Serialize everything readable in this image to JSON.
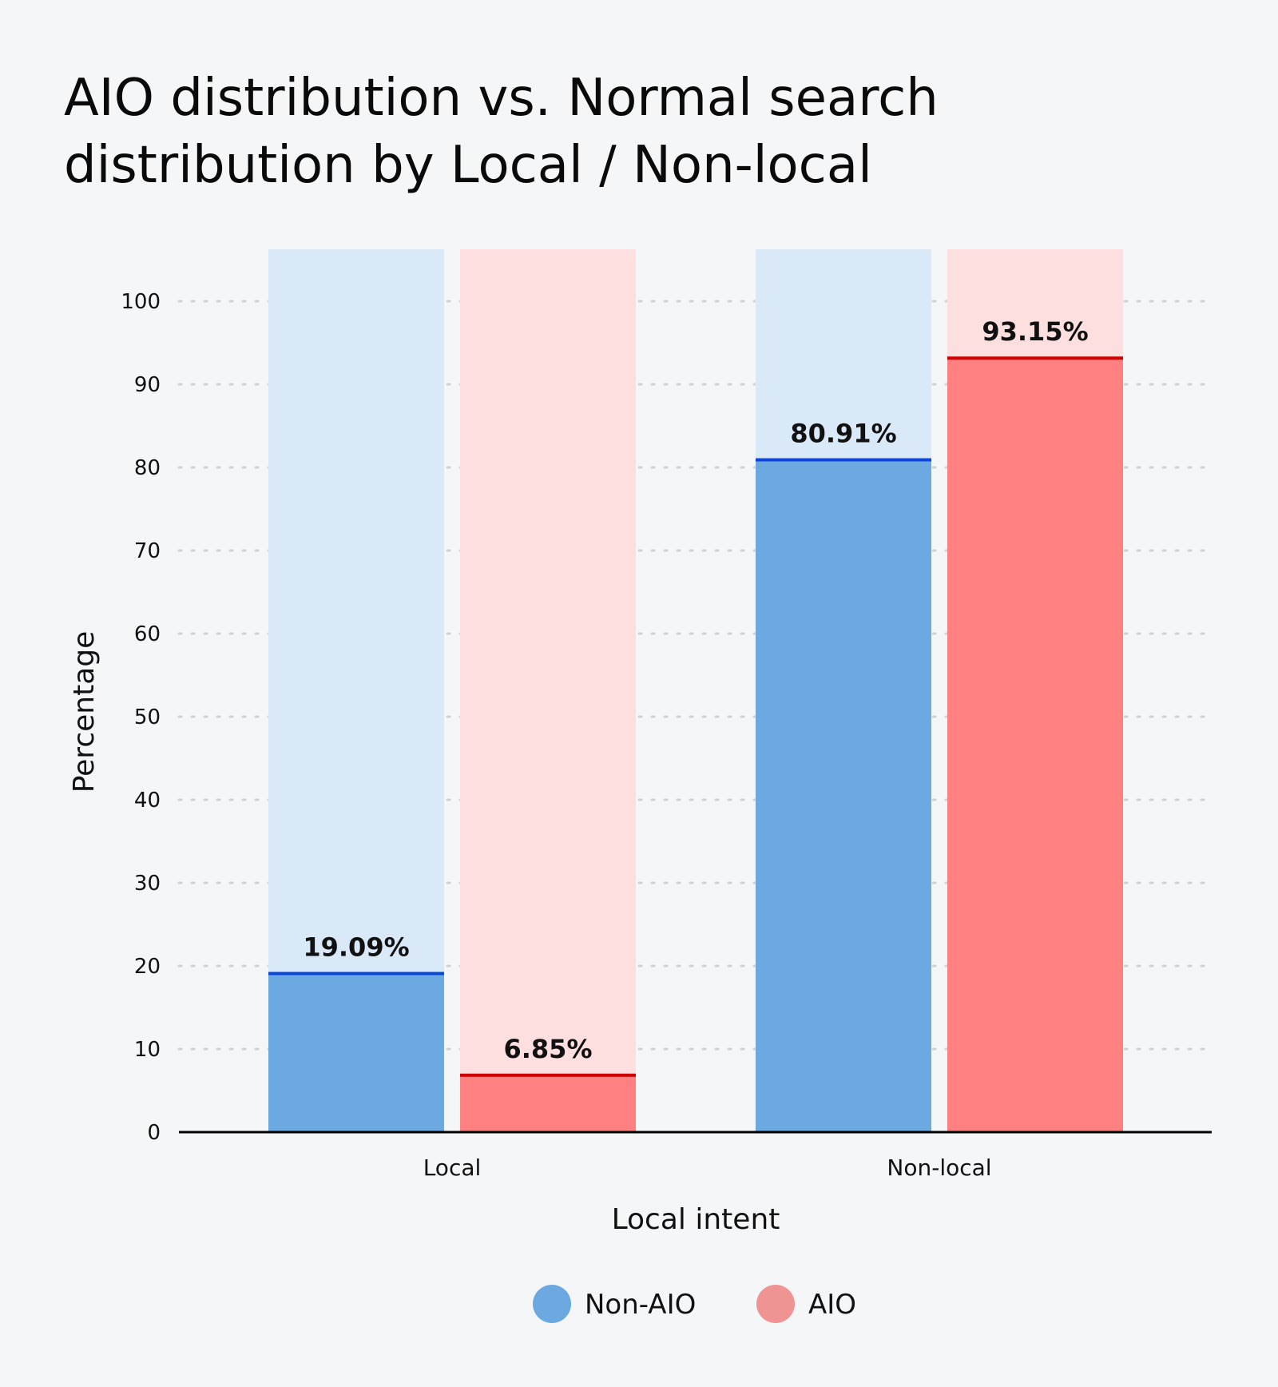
{
  "chart_data": {
    "type": "bar",
    "title_lines": [
      "AIO distribution vs. Normal search",
      "distribution by Local / Non-local"
    ],
    "xlabel": "Local intent",
    "ylabel": "Percentage",
    "categories": [
      "Local",
      "Non-local"
    ],
    "ylim": [
      0,
      100
    ],
    "yticks": [
      0,
      10,
      20,
      30,
      40,
      50,
      60,
      70,
      80,
      90,
      100
    ],
    "grid": "horizontal dotted",
    "legend_placement": "bottom",
    "series": [
      {
        "name": "Non-AIO",
        "values": [
          19.09,
          80.91
        ],
        "labels": [
          "19.09%",
          "80.91%"
        ],
        "color": "#6ca9e0",
        "background": "#d9e9f8",
        "line": "#0b46d6",
        "legend_color": "#6ca9e0"
      },
      {
        "name": "AIO",
        "values": [
          6.85,
          93.15
        ],
        "labels": [
          "6.85%",
          "93.15%"
        ],
        "color": "#ff8080",
        "background": "#fddfe0",
        "line": "#d00000",
        "legend_color": "#ef9393"
      }
    ]
  }
}
